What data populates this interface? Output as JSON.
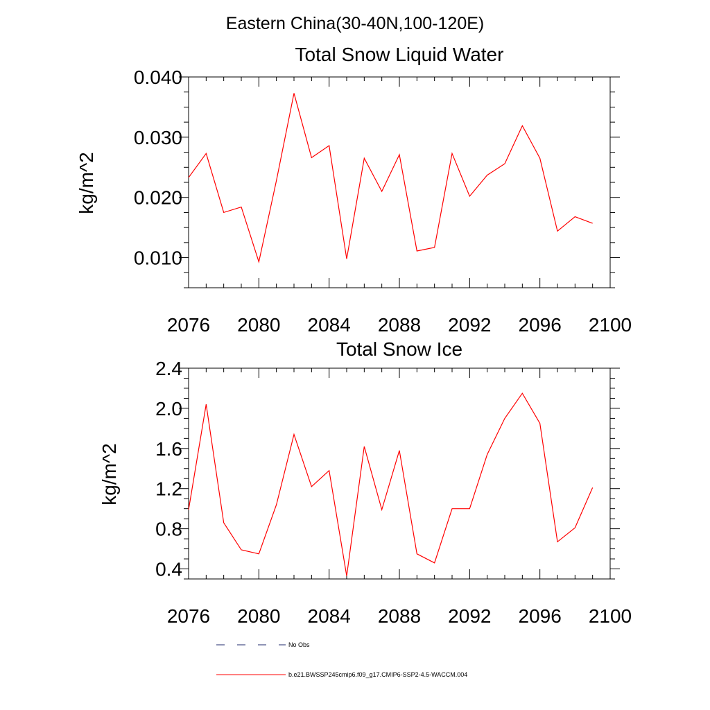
{
  "figure": {
    "suptitle": "Eastern China(30-40N,100-120E)",
    "colors": {
      "series": "#ff0000",
      "obs": "#1f2a6b",
      "axis": "#000000"
    },
    "legend": {
      "obs_label": "No Obs",
      "series_label": "b.e21.BWSSP245cmip6.f09_g17.CMIP6-SSP2-4.5-WACCM.004",
      "placement": "bottom"
    }
  },
  "chart_data": [
    {
      "type": "line",
      "title": "Total Snow Liquid Water",
      "xlabel": "",
      "ylabel": "kg/m^2",
      "xlim": [
        2076,
        2100
      ],
      "ylim": [
        0.005,
        0.04
      ],
      "xticks": [
        2076,
        2080,
        2084,
        2088,
        2092,
        2096,
        2100
      ],
      "xtick_labels": [
        "2076",
        "2080",
        "2084",
        "2088",
        "2092",
        "2096",
        "2100"
      ],
      "yticks": [
        0.01,
        0.02,
        0.03,
        0.04
      ],
      "ytick_labels": [
        "0.010",
        "0.020",
        "0.030",
        "0.040"
      ],
      "x": [
        2076,
        2077,
        2078,
        2079,
        2080,
        2081,
        2082,
        2083,
        2084,
        2085,
        2086,
        2087,
        2088,
        2089,
        2090,
        2091,
        2092,
        2093,
        2094,
        2095,
        2096,
        2097,
        2098,
        2099
      ],
      "series": [
        {
          "name": "b.e21.BWSSP245cmip6.f09_g17.CMIP6-SSP2-4.5-WACCM.004",
          "values": [
            0.0233,
            0.0273,
            0.0175,
            0.0184,
            0.0093,
            0.0228,
            0.0373,
            0.0266,
            0.0286,
            0.0098,
            0.0265,
            0.021,
            0.0271,
            0.0111,
            0.0117,
            0.0273,
            0.0202,
            0.0237,
            0.0256,
            0.0319,
            0.0265,
            0.0144,
            0.0168,
            0.0157
          ]
        }
      ],
      "grid": false
    },
    {
      "type": "line",
      "title": "Total Snow Ice",
      "xlabel": "",
      "ylabel": "kg/m^2",
      "xlim": [
        2076,
        2100
      ],
      "ylim": [
        0.3,
        2.4
      ],
      "xticks": [
        2076,
        2080,
        2084,
        2088,
        2092,
        2096,
        2100
      ],
      "xtick_labels": [
        "2076",
        "2080",
        "2084",
        "2088",
        "2092",
        "2096",
        "2100"
      ],
      "yticks": [
        0.4,
        0.8,
        1.2,
        1.6,
        2.0,
        2.4
      ],
      "ytick_labels": [
        "0.4",
        "0.8",
        "1.2",
        "1.6",
        "2.0",
        "2.4"
      ],
      "x": [
        2076,
        2077,
        2078,
        2079,
        2080,
        2081,
        2082,
        2083,
        2084,
        2085,
        2086,
        2087,
        2088,
        2089,
        2090,
        2091,
        2092,
        2093,
        2094,
        2095,
        2096,
        2097,
        2098,
        2099
      ],
      "series": [
        {
          "name": "b.e21.BWSSP245cmip6.f09_g17.CMIP6-SSP2-4.5-WACCM.004",
          "values": [
            0.99,
            2.04,
            0.86,
            0.59,
            0.55,
            1.04,
            1.74,
            1.22,
            1.38,
            0.33,
            1.62,
            0.99,
            1.58,
            0.55,
            0.46,
            1.0,
            1.0,
            1.54,
            1.9,
            2.15,
            1.85,
            0.67,
            0.81,
            1.21
          ]
        }
      ],
      "grid": false
    }
  ]
}
